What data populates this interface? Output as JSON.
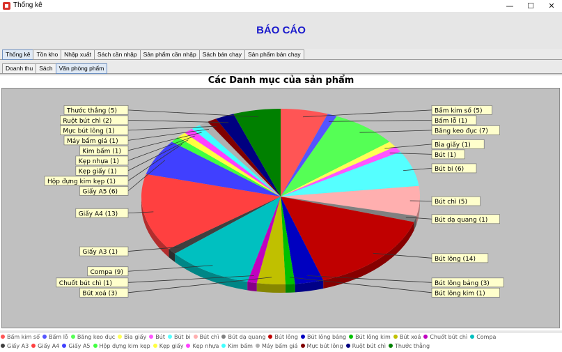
{
  "window": {
    "title": "Thống kê",
    "controls": {
      "minimize": "—",
      "maximize": "☐",
      "close": "✕"
    }
  },
  "header": {
    "title": "BÁO CÁO"
  },
  "main_tabs": [
    "Thống kê",
    "Tồn kho",
    "Nhập xuất",
    "Sách cần nhập",
    "Sản phẩm cần nhập",
    "Sách bán chạy",
    "Sản phẩm bán chạy"
  ],
  "main_tab_active": 0,
  "sub_tabs": [
    "Doanh thu",
    "Sách",
    "Văn phòng phẩm"
  ],
  "sub_tab_active": 2,
  "chart_data": {
    "type": "pie",
    "title": "Các Danh mục của sản phẩm",
    "legend_position": "bottom",
    "slices": [
      {
        "name": "Bấm kim số",
        "value": 5,
        "color": "#ff5555",
        "label": "Bấm kim số (5)"
      },
      {
        "name": "Bấm lỗ",
        "value": 1,
        "color": "#5555ff",
        "label": "Bấm lỗ (1)"
      },
      {
        "name": "Băng keo đục",
        "value": 7,
        "color": "#55ff55",
        "label": "Băng keo đục (7)"
      },
      {
        "name": "Bìa giấy",
        "value": 1,
        "color": "#ffff55",
        "label": "Bìa giấy (1)"
      },
      {
        "name": "Bút",
        "value": 1,
        "color": "#ff55ff",
        "label": "Bút (1)"
      },
      {
        "name": "Bút bi",
        "value": 6,
        "color": "#55ffff",
        "label": "Bút bi (6)"
      },
      {
        "name": "Bút chì",
        "value": 5,
        "color": "#ffafaf",
        "label": "Bút chì (5)"
      },
      {
        "name": "Bút dạ quang",
        "value": 1,
        "color": "#808080",
        "label": "Bút dạ quang (1)"
      },
      {
        "name": "Bút lông",
        "value": 14,
        "color": "#c00000",
        "label": "Bút lông (14)"
      },
      {
        "name": "Bút lông bảng",
        "value": 3,
        "color": "#0000c0",
        "label": "Bút lông bảng (3)"
      },
      {
        "name": "Bút lông kim",
        "value": 1,
        "color": "#00c000",
        "label": "Bút lông kim (1)"
      },
      {
        "name": "Bút xoá",
        "value": 3,
        "color": "#c0c000",
        "label": "Bút xoá (3)"
      },
      {
        "name": "Chuốt bút chì",
        "value": 1,
        "color": "#c000c0",
        "label": "Chuốt bút chì (1)"
      },
      {
        "name": "Compa",
        "value": 9,
        "color": "#00c0c0",
        "label": "Compa (9)"
      },
      {
        "name": "Giấy A3",
        "value": 1,
        "color": "#404040",
        "label": "Giấy A3 (1)"
      },
      {
        "name": "Giấy A4",
        "value": 13,
        "color": "#ff4040",
        "label": "Giấy A4 (13)"
      },
      {
        "name": "Giấy A5",
        "value": 6,
        "color": "#4040ff",
        "label": "Giấy A5 (6)"
      },
      {
        "name": "Hộp đựng kim kẹp",
        "value": 1,
        "color": "#40ff40",
        "label": "Hộp đựng kim kẹp (1)"
      },
      {
        "name": "Kẹp giấy",
        "value": 1,
        "color": "#ffff40",
        "label": "Kẹp giấy (1)"
      },
      {
        "name": "Kẹp nhựa",
        "value": 1,
        "color": "#ff40ff",
        "label": "Kẹp nhựa (1)"
      },
      {
        "name": "Kim bấm",
        "value": 1,
        "color": "#40ffff",
        "label": "Kim bấm (1)"
      },
      {
        "name": "Máy bấm giá",
        "value": 1,
        "color": "#b0b0b0",
        "label": "Máy bấm giá (1)"
      },
      {
        "name": "Mực bút lông",
        "value": 1,
        "color": "#800000",
        "label": "Mực bút lông (1)"
      },
      {
        "name": "Ruột bút chì",
        "value": 2,
        "color": "#000080",
        "label": "Ruột bút chì (2)"
      },
      {
        "name": "Thước thẳng",
        "value": 5,
        "color": "#008000",
        "label": "Thước thẳng (5)"
      }
    ]
  }
}
